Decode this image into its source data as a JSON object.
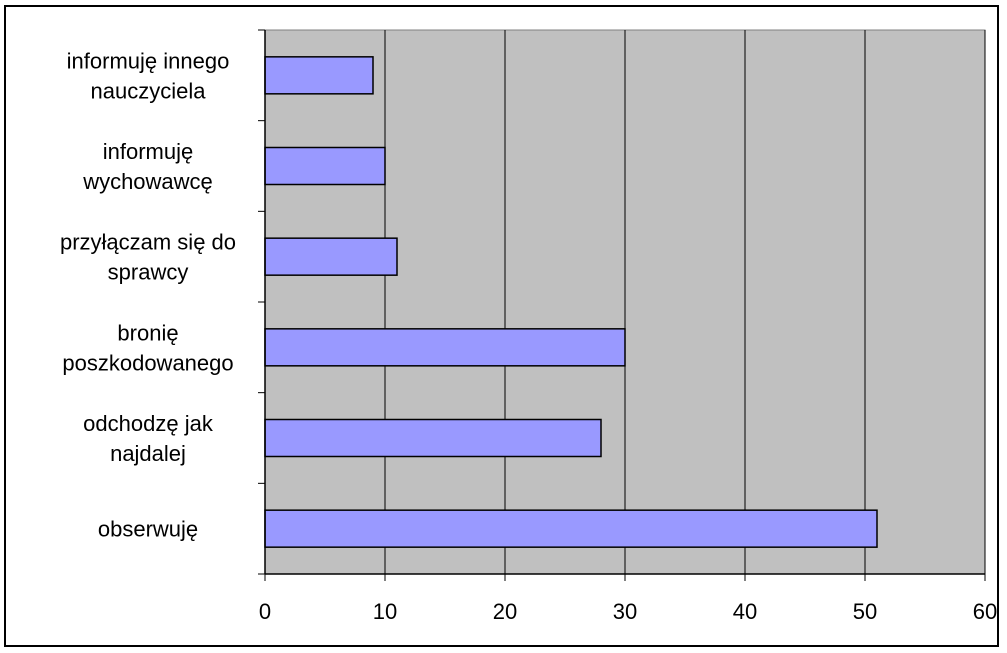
{
  "chart_data": {
    "type": "bar",
    "orientation": "horizontal",
    "categories": [
      [
        "informuję innego",
        "nauczyciela"
      ],
      [
        "informuję",
        "wychowawcę"
      ],
      [
        "przyłączam się do",
        "sprawcy"
      ],
      [
        "bronię",
        "poszkodowanego"
      ],
      [
        "odchodzę jak",
        "najdalej"
      ],
      [
        "obserwuję"
      ]
    ],
    "values": [
      9,
      10,
      11,
      30,
      28,
      51
    ],
    "xlim": [
      0,
      60
    ],
    "xticks": [
      "0",
      "10",
      "20",
      "30",
      "40",
      "50",
      "60"
    ],
    "title": "",
    "xlabel": "",
    "ylabel": "",
    "grid": "vertical",
    "legend": "none",
    "colors": {
      "bar_fill": "#9999ff",
      "bar_stroke": "#000000",
      "plot_background": "#c0c0c0",
      "gridline": "#000000"
    }
  }
}
